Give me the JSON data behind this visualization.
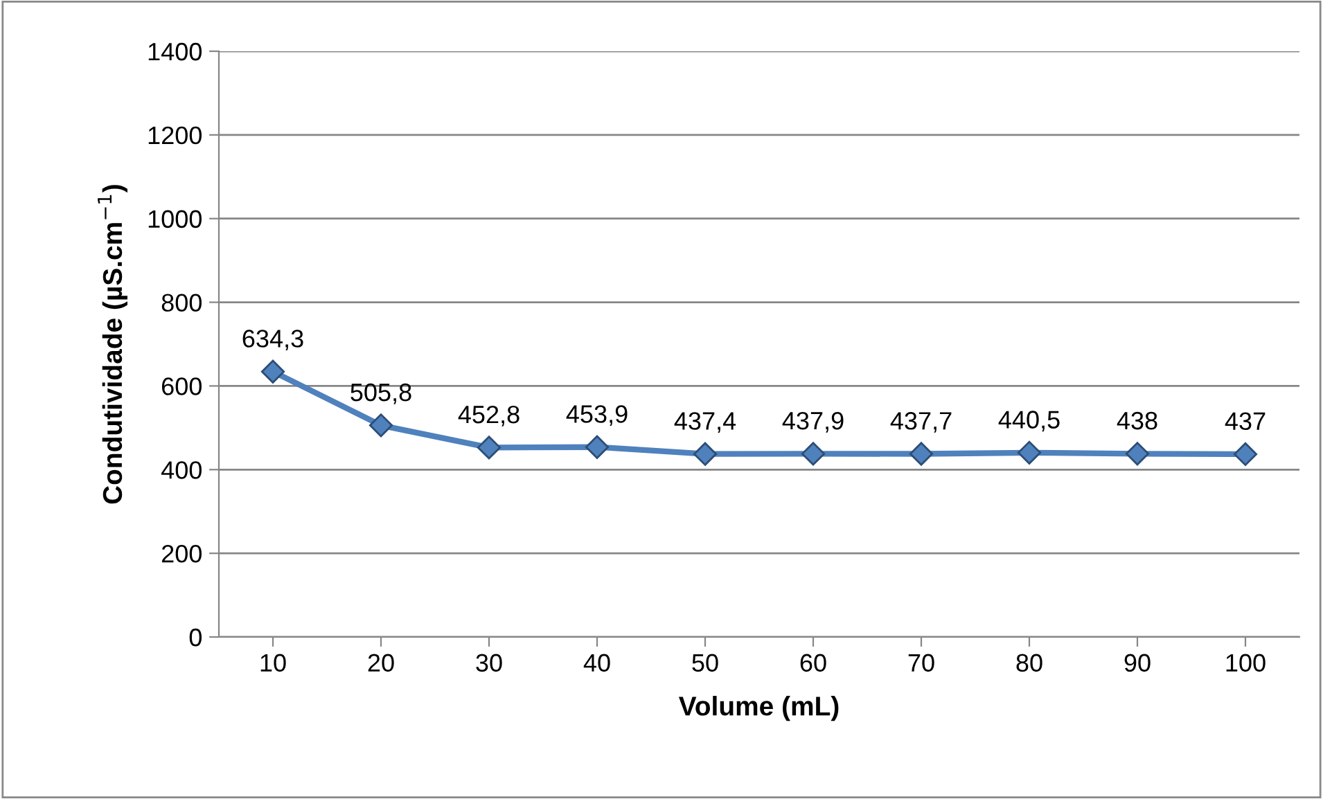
{
  "chart_data": {
    "type": "line",
    "xlabel": "Volume (mL)",
    "ylabel": "Condutividade (µS.cm$^{−1}$)",
    "categories": [
      "10",
      "20",
      "30",
      "40",
      "50",
      "60",
      "70",
      "80",
      "90",
      "100"
    ],
    "series": [
      {
        "color": "#4f81bd",
        "values": [
          634.3,
          505.8,
          452.8,
          453.9,
          437.4,
          437.9,
          437.7,
          440.5,
          438,
          437
        ],
        "value_labels": [
          "634,3",
          "505,8",
          "452,8",
          "453,9",
          "437,4",
          "437,9",
          "437,7",
          "440,5",
          "438",
          "437"
        ]
      }
    ],
    "ylim": [
      0,
      1400
    ],
    "yticks": [
      0,
      200,
      400,
      600,
      800,
      1000,
      1200,
      1400
    ],
    "grid": "y",
    "marker": "diamond",
    "line_style": "solid",
    "legend": false
  }
}
